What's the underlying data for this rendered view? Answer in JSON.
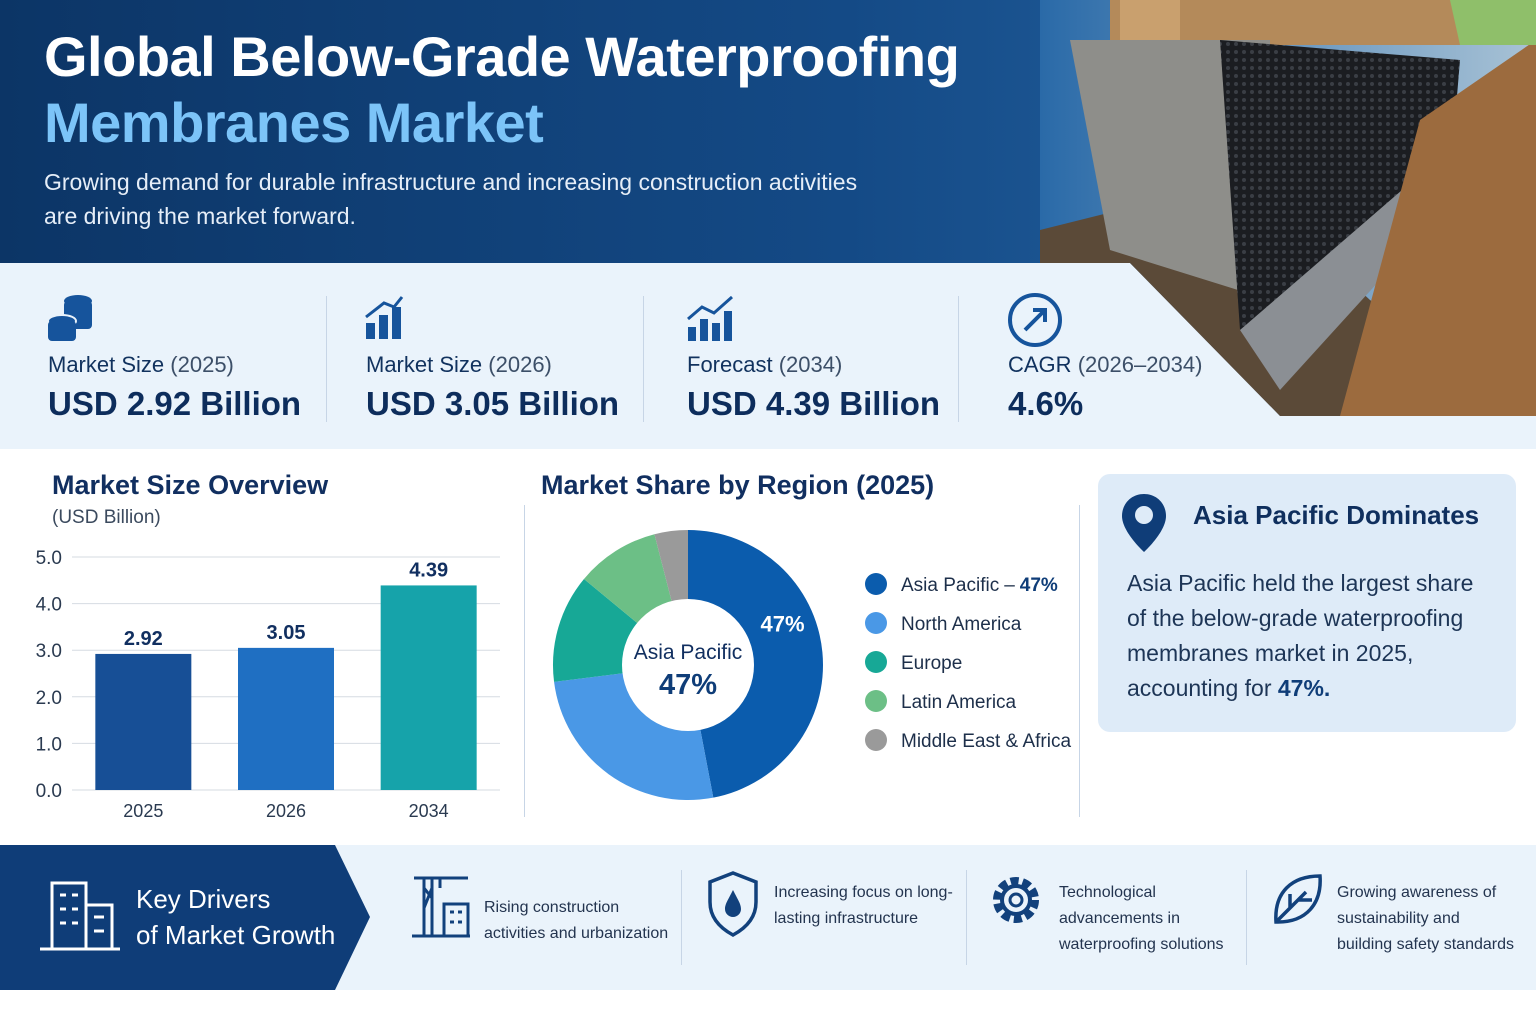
{
  "header": {
    "title_line1": "Global Below-Grade Waterproofing",
    "title_line2": "Membranes Market",
    "subtitle": "Growing demand for durable infrastructure and increasing construction activities are driving the market forward."
  },
  "stats": [
    {
      "label": "Market Size",
      "period": "(2025)",
      "value": "USD 2.92 Billion"
    },
    {
      "label": "Market Size",
      "period": "(2026)",
      "value": "USD 3.05 Billion"
    },
    {
      "label": "Forecast",
      "period": "(2034)",
      "value": "USD 4.39 Billion"
    },
    {
      "label": "CAGR",
      "period": "(2026–2034)",
      "value": "4.6%"
    }
  ],
  "chart_data": [
    {
      "type": "bar",
      "title": "Market Size Overview",
      "subtitle": "(USD Billion)",
      "categories": [
        "2025",
        "2026",
        "2034"
      ],
      "values": [
        2.92,
        3.05,
        4.39
      ],
      "colors": [
        "#174f96",
        "#1f6fc2",
        "#16a3aa"
      ],
      "ylim": [
        0,
        5
      ],
      "yticks": [
        {
          "value": 0,
          "label": "0.0"
        },
        {
          "value": 1,
          "label": "1.0"
        },
        {
          "value": 2,
          "label": "2.0"
        },
        {
          "value": 3,
          "label": "3.0"
        },
        {
          "value": 4,
          "label": "4.0"
        },
        {
          "value": 5,
          "label": "5.0"
        }
      ],
      "grid": true
    },
    {
      "type": "pie",
      "title": "Market Share by Region (2025)",
      "categories": [
        "Asia Pacific",
        "North America",
        "Europe",
        "Latin America",
        "Middle East & Africa"
      ],
      "values": [
        47,
        26,
        13,
        10,
        4
      ],
      "value_labels": [
        "47%",
        null,
        null,
        null,
        null
      ],
      "colors": [
        "#0b5cad",
        "#4a98e6",
        "#17a896",
        "#6cbf86",
        "#9a9a9a"
      ],
      "center_label": "Asia Pacific",
      "center_value": "47%",
      "legend_separator": "–"
    }
  ],
  "callout": {
    "title": "Asia Pacific Dominates",
    "text": "Asia Pacific held the largest share of the below-grade waterproofing membranes market in 2025, accounting for",
    "highlight": "47%."
  },
  "drivers": {
    "title_line1": "Key Drivers",
    "title_line2": "of Market Growth",
    "items": [
      "Rising construction activities and urbanization",
      "Increasing focus on long-lasting infrastructure",
      "Technological advancements in waterproofing solutions",
      "Growing awareness of sustainability and building safety standards"
    ]
  }
}
